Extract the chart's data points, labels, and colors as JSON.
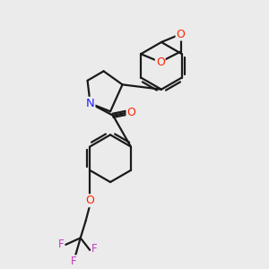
{
  "bg_color": "#ebebeb",
  "bond_color": "#1a1a1a",
  "N_color": "#2222ff",
  "O_color": "#ff2200",
  "F_color": "#cc33cc",
  "bond_width": 1.6,
  "figsize": [
    3.0,
    3.0
  ],
  "dpi": 100,
  "xlim": [
    0,
    10
  ],
  "ylim": [
    0,
    10
  ]
}
